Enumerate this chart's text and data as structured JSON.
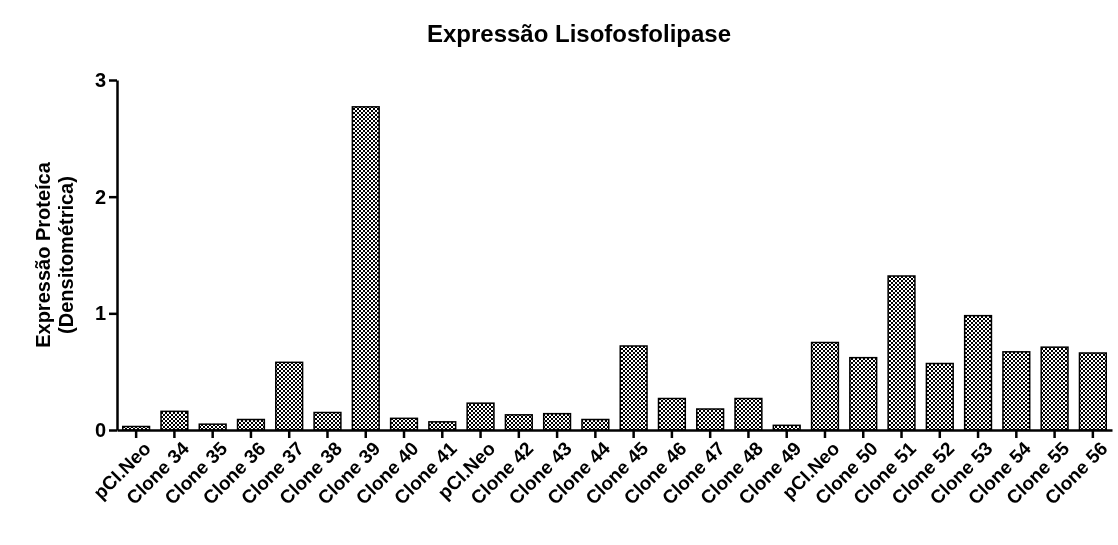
{
  "chart_data": {
    "type": "bar",
    "title": "Expressão  Lisofosfolipase",
    "ylabel": "Expressão Proteíca\n(Densitométrica)",
    "categories": [
      "pCI.Neo",
      "Clone 34",
      "Clone 35",
      "Clone 36",
      "Clone 37",
      "Clone 38",
      "Clone 39",
      "Clone 40",
      "Clone 41",
      "pCI.Neo",
      "Clone 42",
      "Clone 43",
      "Clone 44",
      "Clone 45",
      "Clone 46",
      "Clone 47",
      "Clone 48",
      "Clone 49",
      "pCI.Neo",
      "Clone 50",
      "Clone 51",
      "Clone 52",
      "Clone 53",
      "Clone 54",
      "Clone 55",
      "Clone 56"
    ],
    "values": [
      0.03,
      0.16,
      0.05,
      0.09,
      0.58,
      0.15,
      2.77,
      0.1,
      0.07,
      0.23,
      0.13,
      0.14,
      0.09,
      0.72,
      0.27,
      0.18,
      0.27,
      0.04,
      0.75,
      0.62,
      1.32,
      0.57,
      0.98,
      0.67,
      0.71,
      0.66
    ],
    "color": "#000000",
    "ylim": [
      0,
      3
    ],
    "yticks": [
      0,
      1,
      2,
      3
    ],
    "grid": false
  }
}
